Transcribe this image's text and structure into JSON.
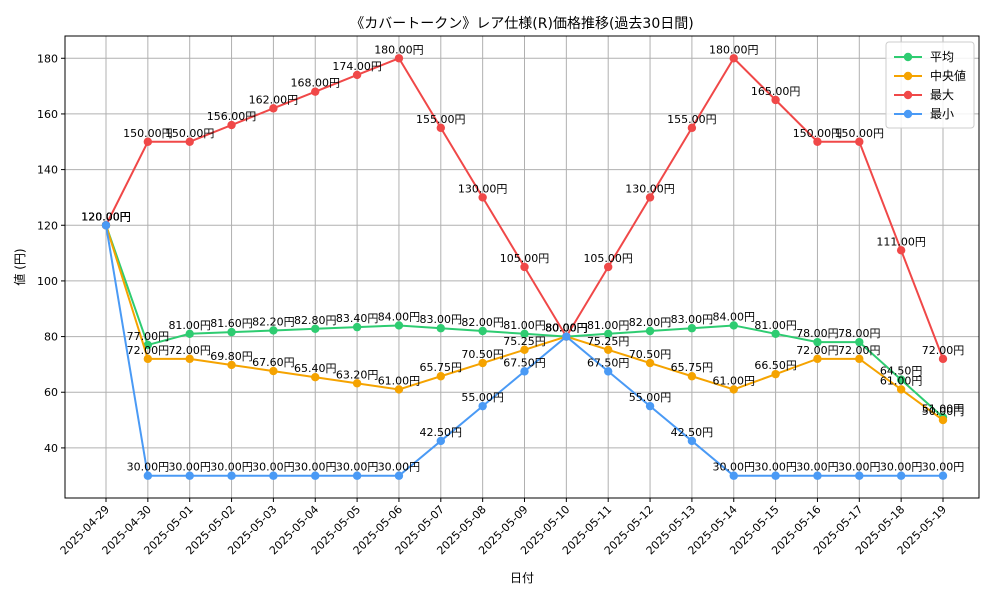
{
  "chart_data": {
    "type": "line",
    "title": "《カバートークン》レア仕様(R)価格推移(過去30日間)",
    "xlabel": "日付",
    "ylabel": "値 (円)",
    "ylim": [
      22,
      188
    ],
    "yticks": [
      40,
      60,
      80,
      100,
      120,
      140,
      160,
      180
    ],
    "grid": true,
    "legend_position": "top-right",
    "value_suffix": "円",
    "categories": [
      "2025-04-29",
      "2025-04-30",
      "2025-05-01",
      "2025-05-02",
      "2025-05-03",
      "2025-05-04",
      "2025-05-05",
      "2025-05-06",
      "2025-05-07",
      "2025-05-08",
      "2025-05-09",
      "2025-05-10",
      "2025-05-11",
      "2025-05-12",
      "2025-05-13",
      "2025-05-14",
      "2025-05-15",
      "2025-05-16",
      "2025-05-17",
      "2025-05-18",
      "2025-05-19"
    ],
    "series": [
      {
        "name": "平均",
        "color": "#2ecc71",
        "values": [
          120,
          77,
          81,
          81.6,
          82.2,
          82.8,
          83.4,
          84,
          83,
          82,
          81,
          80,
          81,
          82,
          83,
          84,
          81,
          78,
          78,
          64.5,
          51
        ]
      },
      {
        "name": "中央値",
        "color": "#f5a300",
        "values": [
          120,
          72,
          72,
          69.8,
          67.6,
          65.4,
          63.2,
          61,
          65.75,
          70.5,
          75.25,
          80,
          75.25,
          70.5,
          65.75,
          61,
          66.5,
          72,
          72,
          61,
          50
        ]
      },
      {
        "name": "最大",
        "color": "#f04848",
        "values": [
          120,
          150,
          150,
          156,
          162,
          168,
          174,
          180,
          155,
          130,
          105,
          80,
          105,
          130,
          155,
          180,
          165,
          150,
          150,
          111,
          72
        ]
      },
      {
        "name": "最小",
        "color": "#4a9af5",
        "values": [
          120,
          30,
          30,
          30,
          30,
          30,
          30,
          30,
          42.5,
          55,
          67.5,
          80,
          67.5,
          55,
          42.5,
          30,
          30,
          30,
          30,
          30,
          30
        ]
      }
    ]
  }
}
